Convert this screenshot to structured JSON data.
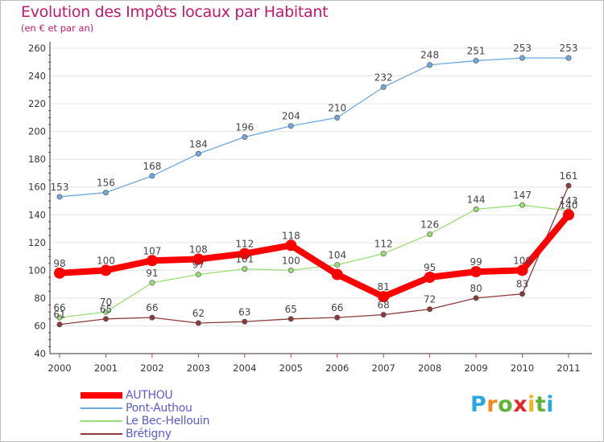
{
  "header": {
    "title": "Evolution des Impôts locaux par Habitant",
    "subtitle": "(en € et par an)"
  },
  "logo": {
    "letters": [
      "P",
      "r",
      "o",
      "x",
      "i",
      "t",
      "i"
    ],
    "colors": [
      "#2aa9df",
      "#f08a1c",
      "#5fb23a",
      "#e3262c",
      "#f0b31c",
      "#5fb23a",
      "#2aa9df"
    ]
  },
  "chart_data": {
    "type": "line",
    "title": "Evolution des Impôts locaux par Habitant",
    "subtitle": "(en € et par an)",
    "xlabel": "",
    "ylabel": "",
    "x": [
      "2000",
      "2001",
      "2002",
      "2003",
      "2004",
      "2005",
      "2006",
      "2007",
      "2008",
      "2009",
      "2010",
      "2011"
    ],
    "ylim": [
      40,
      260
    ],
    "yticks": [
      40,
      60,
      80,
      100,
      120,
      140,
      160,
      180,
      200,
      220,
      240,
      260
    ],
    "grid": "horizontal",
    "legend_position": "bottom-left",
    "series": [
      {
        "name": "AUTHOU",
        "color": "#ff0000",
        "weight": "thick",
        "values": [
          98,
          100,
          107,
          108,
          112,
          118,
          97,
          81,
          95,
          99,
          100,
          140
        ],
        "labels": [
          "98",
          "100",
          "107",
          "108",
          "112",
          "118",
          "",
          "81",
          "95",
          "99",
          "100",
          "140"
        ]
      },
      {
        "name": "Pont-Authou",
        "color": "#6fa8dc",
        "weight": "thin",
        "values": [
          153,
          156,
          168,
          184,
          196,
          204,
          210,
          232,
          248,
          251,
          253,
          253
        ],
        "labels": [
          "153",
          "156",
          "168",
          "184",
          "196",
          "204",
          "210",
          "232",
          "248",
          "251",
          "253",
          "253"
        ]
      },
      {
        "name": "Le Bec-Hellouin",
        "color": "#99dd77",
        "weight": "thin",
        "values": [
          66,
          70,
          91,
          97,
          101,
          100,
          104,
          112,
          126,
          144,
          147,
          143
        ],
        "labels": [
          "66",
          "70",
          "91",
          "97",
          "101",
          "100",
          "104",
          "112",
          "126",
          "144",
          "147",
          "143"
        ]
      },
      {
        "name": "Brétigny",
        "color": "#8b3a3a",
        "weight": "thin",
        "values": [
          61,
          65,
          66,
          62,
          63,
          65,
          66,
          68,
          72,
          80,
          83,
          161
        ],
        "labels": [
          "61",
          "65",
          "66",
          "62",
          "63",
          "65",
          "66",
          "68",
          "72",
          "80",
          "83",
          "161"
        ]
      }
    ]
  }
}
